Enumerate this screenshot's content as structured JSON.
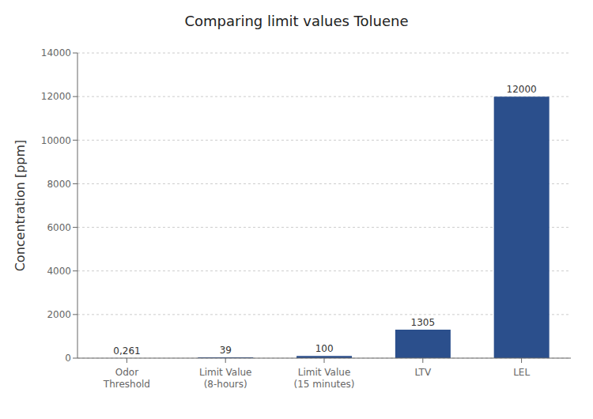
{
  "chart_data": {
    "type": "bar",
    "title": "Comparing limit values Toluene",
    "categories": [
      "Odor\nThreshold",
      "Limit Value\n(8-hours)",
      "Limit Value\n(15 minutes)",
      "LTV",
      "LEL"
    ],
    "values": [
      0.261,
      39,
      100,
      1305,
      12000
    ],
    "value_labels": [
      "0,261",
      "39",
      "100",
      "1305",
      "12000"
    ],
    "data_labels": true,
    "color": "#2B4F8C",
    "ylabel": "Concentration [ppm]",
    "ylim": [
      0,
      14000
    ],
    "yticks": [
      0,
      2000,
      4000,
      6000,
      8000,
      10000,
      12000,
      14000
    ],
    "grid": true
  }
}
